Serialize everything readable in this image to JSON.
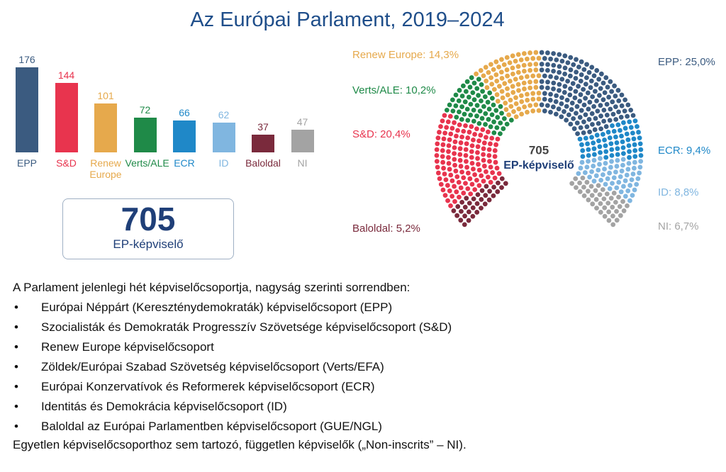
{
  "title": "Az Európai Parlament, 2019–2024",
  "chart_data": [
    {
      "type": "bar",
      "categories": [
        "EPP",
        "S&D",
        "Renew Europe",
        "Verts/ALE",
        "ECR",
        "ID",
        "Baloldal",
        "NI"
      ],
      "values": [
        176,
        144,
        101,
        72,
        66,
        62,
        37,
        47
      ],
      "colors": [
        "#3b5b80",
        "#e8344e",
        "#e6a94c",
        "#1f8a48",
        "#1f88c8",
        "#80b6e0",
        "#7a2a3c",
        "#a3a3a3"
      ]
    },
    {
      "type": "parliament",
      "values": [
        25.0,
        20.4,
        14.3,
        10.2,
        9.4,
        8.8,
        5.2,
        6.7
      ],
      "value_labels": [
        "EPP: 25,0%",
        "S&D: 20,4%",
        "Renew Europe: 14,3%",
        "Verts/ALE: 10,2%",
        "ECR: 9,4%",
        "ID: 8,8%",
        "Baloldal: 5,2%",
        "NI: 6,7%"
      ],
      "colors": [
        "#3b5b80",
        "#e8344e",
        "#e6a94c",
        "#1f8a48",
        "#1f88c8",
        "#80b6e0",
        "#7a2a3c",
        "#a3a3a3"
      ],
      "total": 705,
      "total_label": "EP-képviselő"
    }
  ],
  "total_box": {
    "value": 705,
    "label": "EP-képviselő"
  },
  "text": {
    "intro": "A Parlament jelenlegi hét képviselőcsoportja, nagyság szerinti sorrendben:",
    "items": [
      "Európai Néppárt (Kereszténydemokraták) képviselőcsoport (EPP)",
      "Szocialisták és Demokraták Progresszív Szövetsége képviselőcsoport (S&D)",
      "Renew Europe képviselőcsoport",
      "Zöldek/Európai Szabad Szövetség képviselőcsoport (Verts/EFA)",
      "Európai Konzervatívok és Reformerek képviselőcsoport (ECR)",
      "Identitás és Demokrácia képviselőcsoport (ID)",
      "Baloldal az Európai Parlamentben képviselőcsoport (GUE/NGL)"
    ],
    "footer": "Egyetlen képviselőcsoporthoz sem tartozó, független képviselők („Non-inscrits” – NI)."
  }
}
